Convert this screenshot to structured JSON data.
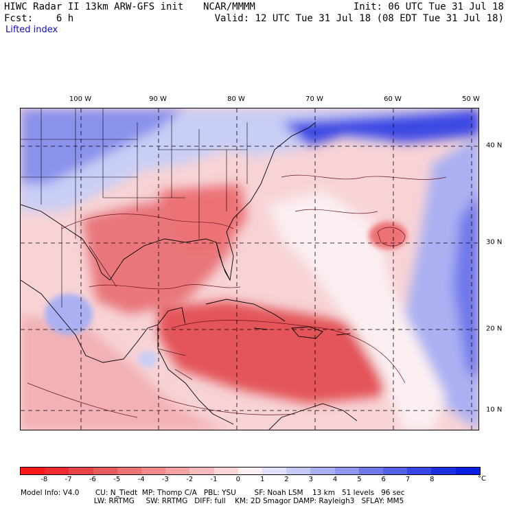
{
  "header": {
    "title": "HIWC Radar II 13km ARW-GFS init",
    "org": "NCAR/MMMM",
    "init": "Init: 06 UTC Tue 31 Jul 18",
    "fcst": "Fcst:    6 h",
    "valid": "Valid: 12 UTC Tue 31 Jul 18 (08 EDT Tue 31 Jul 18)",
    "field": "Lifted index"
  },
  "map": {
    "lon_labels": [
      "100 W",
      "90 W",
      "80 W",
      "70 W",
      "60 W",
      "50 W"
    ],
    "lat_labels": [
      "40 N",
      "30 N",
      "20 N",
      "10 N"
    ],
    "colors": {
      "ocean_pink": "#f7d3d6",
      "land_red": "#e8767a",
      "deep_red": "#e35458",
      "land_pink": "#f2b1b4",
      "blue_light": "#c9cef6",
      "blue_mid": "#8a92ec",
      "blue_dark": "#3e48e4",
      "white": "#f8f4f6"
    }
  },
  "colorbar": {
    "ticks": [
      "-8",
      "-7",
      "-6",
      "-5",
      "-4",
      "-3",
      "-2",
      "-1",
      "0",
      "1",
      "2",
      "3",
      "4",
      "5",
      "6",
      "7",
      "8"
    ],
    "unit": "°C",
    "colors": [
      "#ff1a1a",
      "#f02c30",
      "#e84448",
      "#e85a5e",
      "#ec7276",
      "#f0888c",
      "#f4a2a5",
      "#f8bcbe",
      "#fbd6d8",
      "#fbeff1",
      "#e0e2fa",
      "#c6caf6",
      "#aab0f2",
      "#8e96ee",
      "#7078ea",
      "#5460e6",
      "#3846e4",
      "#1c30e0",
      "#0a1ee0"
    ]
  },
  "info": {
    "line1": "Model Info: V4.0       CU: N_Tiedt  MP: Thomp C/A   PBL: YSU        SF: Noah LSM    13 km   51 levels   96 sec",
    "line2": "                                LW: RRTMG     SW: RRTMG   DIFF: full    KM: 2D Smagor DAMP: Rayleigh3   SFLAY: MM5"
  }
}
